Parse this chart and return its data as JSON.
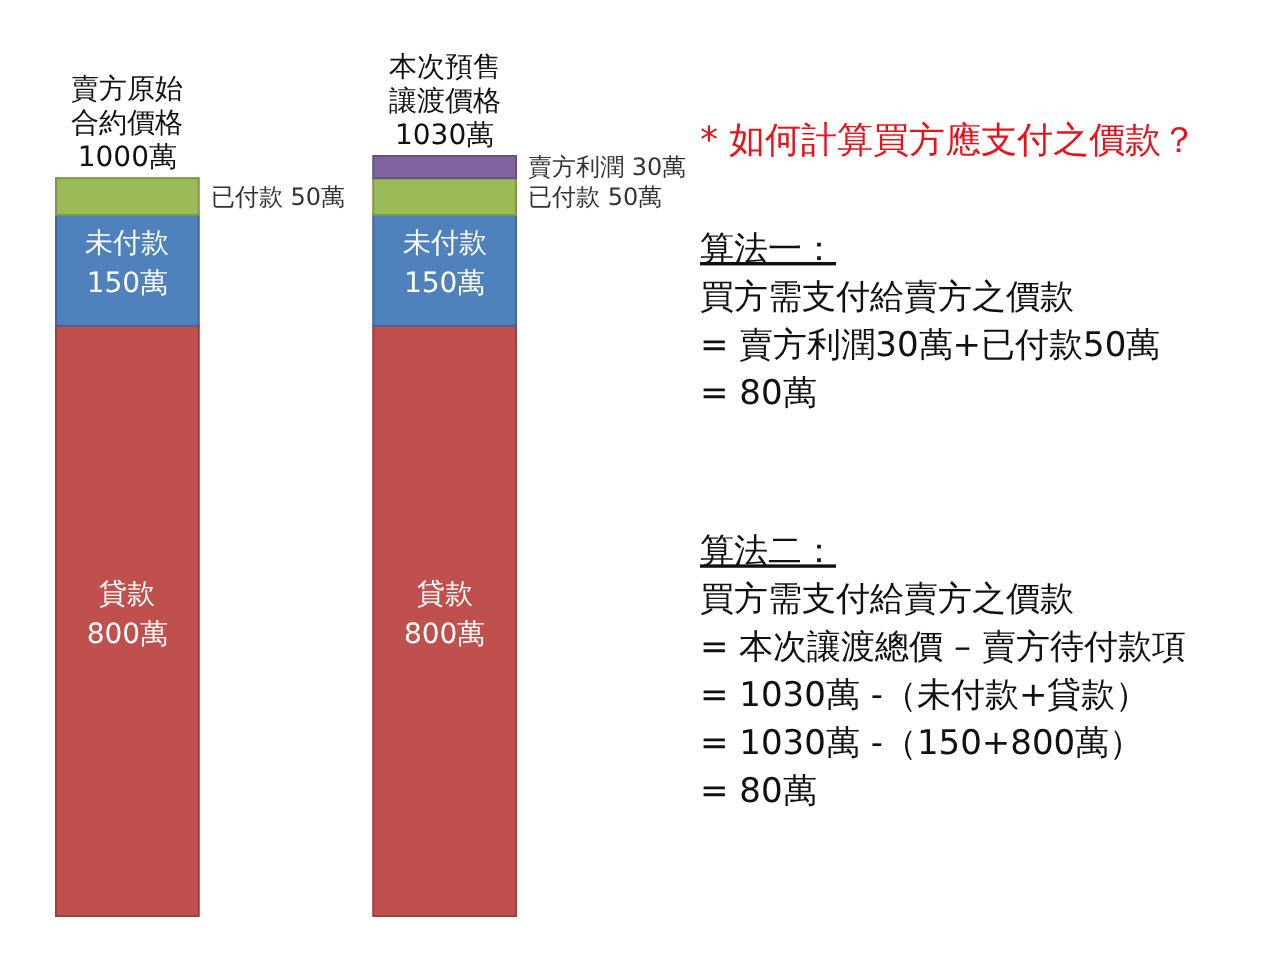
{
  "chart_data": {
    "type": "bar",
    "stacked": true,
    "title": "* 如何計算買方應支付之價款？",
    "categories": [
      "賣方原始合約價格",
      "本次預售讓渡價格"
    ],
    "series": [
      {
        "name": "貸款",
        "color": "#c0504d",
        "values": [
          800,
          800
        ],
        "value_labels": [
          "800萬",
          "800萬"
        ]
      },
      {
        "name": "未付款",
        "color": "#4f81bd",
        "values": [
          150,
          150
        ],
        "value_labels": [
          "150萬",
          "150萬"
        ]
      },
      {
        "name": "已付款",
        "color": "#9bbb59",
        "values": [
          50,
          50
        ],
        "value_labels": [
          "50萬",
          "50萬"
        ]
      },
      {
        "name": "賣方利潤",
        "color": "#8064a2",
        "values": [
          null,
          30
        ],
        "value_labels": [
          null,
          "30萬"
        ]
      }
    ],
    "totals": [
      "1000萬",
      "1030萬"
    ],
    "annotations": [
      "算法一：",
      "買方需支付給賣方之價款",
      "= 賣方利潤30萬+已付款50萬",
      "= 80萬",
      "算法二：",
      "買方需支付給賣方之價款",
      "= 本次讓渡總價 – 賣方待付款項",
      "= 1030萬 -（未付款+貸款）",
      "= 1030萬 -（150+800萬）",
      "= 80萬"
    ]
  }
}
